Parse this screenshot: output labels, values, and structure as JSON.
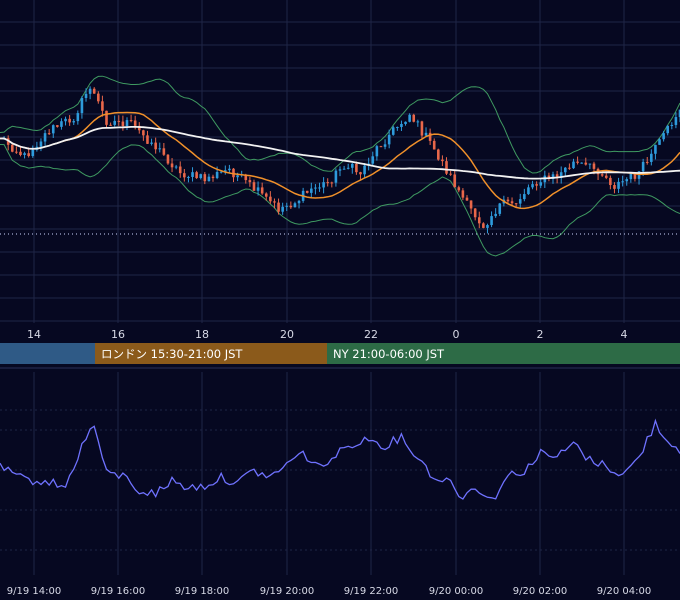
{
  "colors": {
    "background": "#060821",
    "grid": "#1f2646",
    "candle_up": "#2e9bdc",
    "candle_down": "#e8674a",
    "ma_short": "#f0902a",
    "ma_long": "#f2f2f2",
    "bollinger": "#3f9a61",
    "oscillator": "#6f72ff",
    "session_tokyo": "#2f5a86",
    "session_london": "#8b5a1b",
    "session_ny": "#2d6b46"
  },
  "main_axis": {
    "hour_ticks": [
      "14",
      "16",
      "18",
      "20",
      "22",
      "0",
      "2",
      "4"
    ]
  },
  "sessions": [
    {
      "label": "",
      "color_key": "session_tokyo"
    },
    {
      "label": "ロンドン 15:30-21:00 JST",
      "color_key": "session_london"
    },
    {
      "label": "NY 21:00-06:00 JST",
      "color_key": "session_ny"
    }
  ],
  "bottom_axis": {
    "time_labels": [
      "9/19 14:00",
      "9/19 16:00",
      "9/19 18:00",
      "9/19 20:00",
      "9/19 22:00",
      "9/20 00:00",
      "9/20 02:00",
      "9/20 04:00"
    ]
  },
  "chart_data": [
    {
      "type": "candlestick",
      "title": "",
      "x_ticks": [
        "14",
        "16",
        "18",
        "20",
        "22",
        "0",
        "2",
        "4"
      ],
      "price_anchors_relative": [
        [
          0,
          0.62
        ],
        [
          6,
          0.5
        ],
        [
          12,
          0.66
        ],
        [
          18,
          0.74
        ],
        [
          22,
          0.93
        ],
        [
          26,
          0.72
        ],
        [
          32,
          0.7
        ],
        [
          38,
          0.56
        ],
        [
          44,
          0.4
        ],
        [
          50,
          0.36
        ],
        [
          56,
          0.42
        ],
        [
          62,
          0.3
        ],
        [
          68,
          0.18
        ],
        [
          72,
          0.22
        ],
        [
          76,
          0.3
        ],
        [
          80,
          0.34
        ],
        [
          84,
          0.45
        ],
        [
          88,
          0.4
        ],
        [
          92,
          0.55
        ],
        [
          96,
          0.66
        ],
        [
          100,
          0.76
        ],
        [
          104,
          0.62
        ],
        [
          108,
          0.46
        ],
        [
          114,
          0.2
        ],
        [
          118,
          0.08
        ],
        [
          122,
          0.2
        ],
        [
          126,
          0.22
        ],
        [
          130,
          0.34
        ],
        [
          136,
          0.38
        ],
        [
          140,
          0.46
        ],
        [
          146,
          0.42
        ],
        [
          150,
          0.32
        ],
        [
          156,
          0.4
        ],
        [
          162,
          0.62
        ],
        [
          166,
          0.8
        ]
      ],
      "overlays": [
        "moving-average-short",
        "moving-average-long",
        "bollinger-bands"
      ],
      "grid": true
    },
    {
      "type": "line",
      "title": "",
      "series_name": "",
      "oscillator_anchors_relative": [
        [
          0,
          0.48
        ],
        [
          6,
          0.36
        ],
        [
          12,
          0.34
        ],
        [
          16,
          0.28
        ],
        [
          20,
          0.7
        ],
        [
          23,
          0.9
        ],
        [
          26,
          0.42
        ],
        [
          30,
          0.4
        ],
        [
          34,
          0.25
        ],
        [
          38,
          0.22
        ],
        [
          42,
          0.35
        ],
        [
          46,
          0.28
        ],
        [
          50,
          0.3
        ],
        [
          54,
          0.38
        ],
        [
          58,
          0.33
        ],
        [
          62,
          0.45
        ],
        [
          66,
          0.38
        ],
        [
          70,
          0.52
        ],
        [
          74,
          0.62
        ],
        [
          78,
          0.48
        ],
        [
          82,
          0.6
        ],
        [
          86,
          0.72
        ],
        [
          90,
          0.76
        ],
        [
          94,
          0.7
        ],
        [
          98,
          0.78
        ],
        [
          102,
          0.58
        ],
        [
          106,
          0.38
        ],
        [
          110,
          0.34
        ],
        [
          113,
          0.18
        ],
        [
          116,
          0.3
        ],
        [
          120,
          0.15
        ],
        [
          124,
          0.4
        ],
        [
          128,
          0.45
        ],
        [
          132,
          0.62
        ],
        [
          136,
          0.58
        ],
        [
          140,
          0.72
        ],
        [
          144,
          0.55
        ],
        [
          148,
          0.5
        ],
        [
          152,
          0.4
        ],
        [
          156,
          0.58
        ],
        [
          160,
          0.92
        ],
        [
          163,
          0.74
        ],
        [
          166,
          0.66
        ]
      ],
      "grid": true
    }
  ]
}
